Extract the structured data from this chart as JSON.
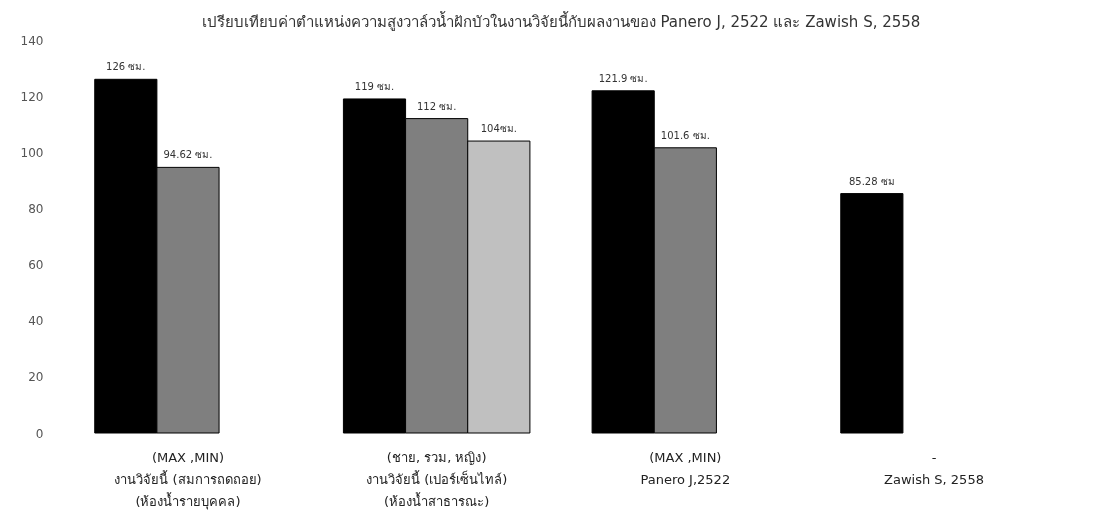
{
  "chart_data": {
    "type": "bar",
    "title": "เปรียบเทียบค่าตำแหน่งความสูงวาล์วน้ำฝักบัวในงานวิจัยนี้กับผลงานของ Panero J, 2522 และ Zawish S, 2558",
    "categories": [
      "(MAX ,MIN)\nงานวิจัยนี้ (สมการถดถอย)\n(ห้องน้ำรายบุคคล)",
      "(ชาย, รวม, หญิง)\nงานวิจัยนี้ (เปอร์เซ็นไทล์)\n(ห้องน้ำสาธารณะ)",
      "(MAX ,MIN)\nPanero J,2522",
      "-\nZawish S, 2558"
    ],
    "series": [
      {
        "color": "#000000",
        "values": [
          126,
          119,
          121.9,
          85.28
        ],
        "value_labels": [
          "126 ซม.",
          "119 ซม.",
          "121.9 ซม.",
          "85.28 ซม"
        ]
      },
      {
        "color": "#7f7f7f",
        "values": [
          94.62,
          112,
          101.6,
          null
        ],
        "value_labels": [
          "94.62 ซม.",
          "112 ซม.",
          "101.6 ซม.",
          null
        ]
      },
      {
        "color": "#c0c0c0",
        "values": [
          null,
          104,
          null,
          null
        ],
        "value_labels": [
          null,
          "104ซม.",
          null,
          null
        ]
      }
    ],
    "ylim": [
      0,
      140
    ],
    "yticks": [
      0,
      20,
      40,
      60,
      80,
      100,
      120,
      140
    ],
    "grid": false,
    "legend": false
  }
}
